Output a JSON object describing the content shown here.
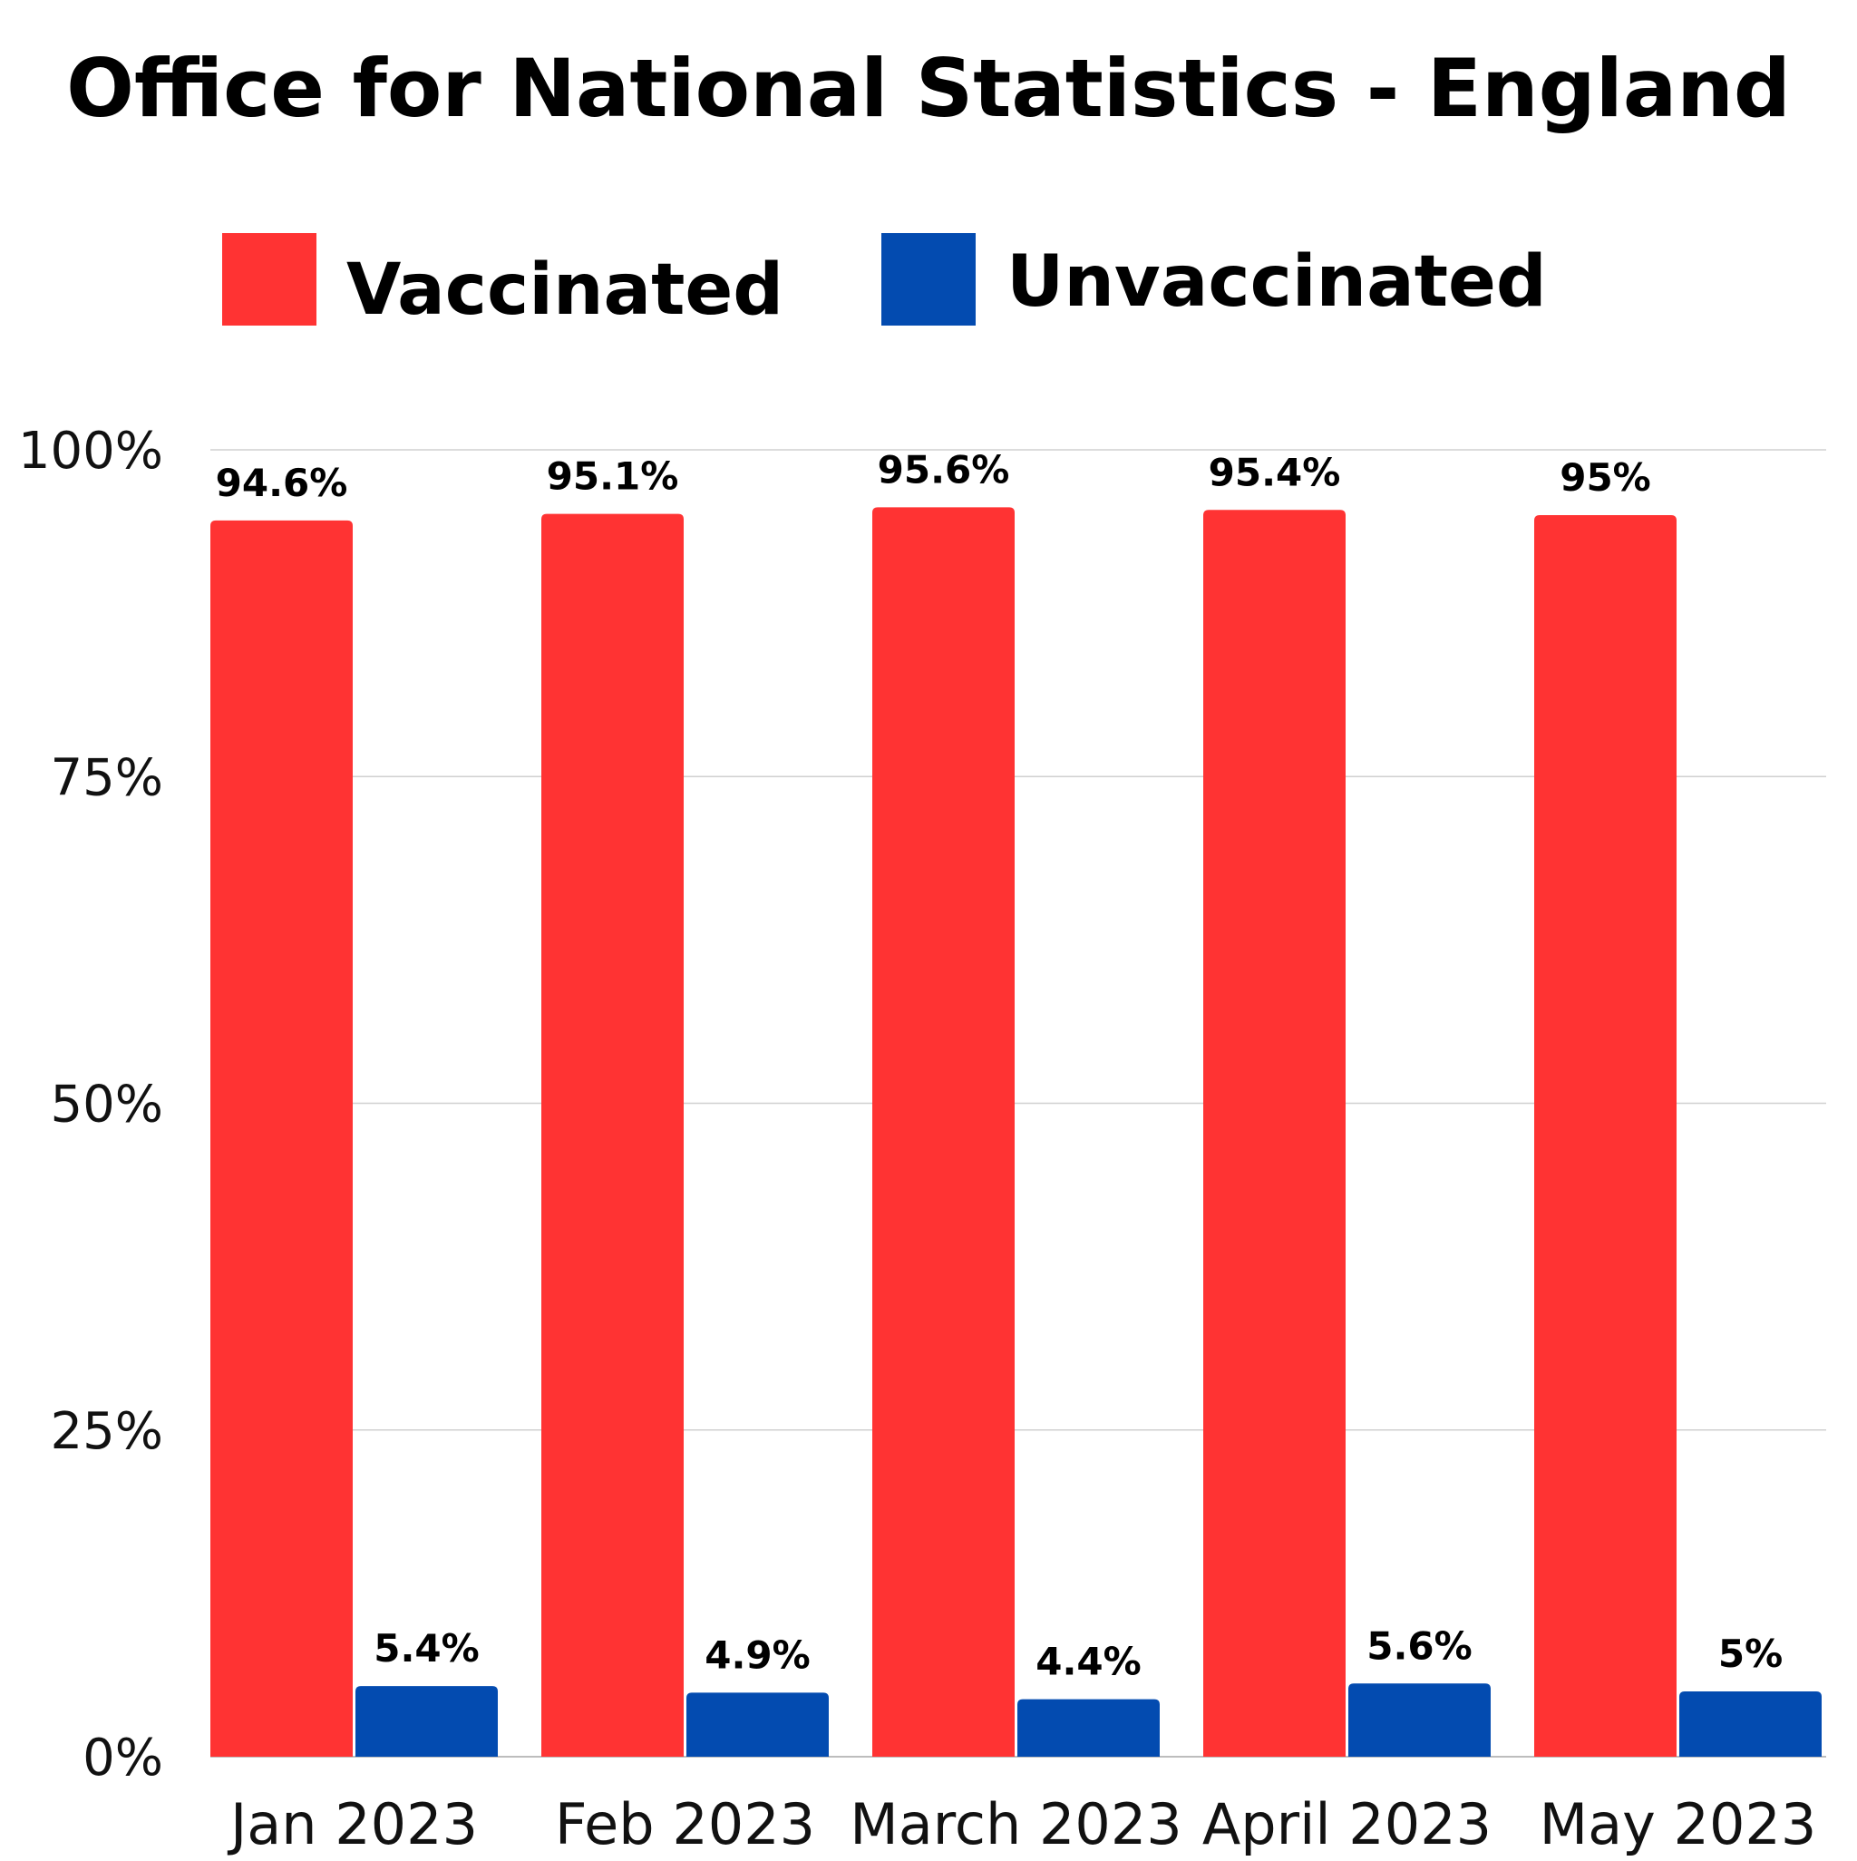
{
  "chart_data": {
    "type": "bar",
    "title": "Office for National Statistics - England",
    "xlabel": "",
    "ylabel": "",
    "categories": [
      "Jan 2023",
      "Feb 2023",
      "March 2023",
      "April 2023",
      "May 2023"
    ],
    "series": [
      {
        "name": "Vaccinated",
        "color": "#ff3333",
        "values": [
          94.6,
          95.1,
          95.6,
          95.4,
          95
        ],
        "labels": [
          "94.6%",
          "95.1%",
          "95.6%",
          "95.4%",
          "95%"
        ]
      },
      {
        "name": "Unvaccinated",
        "color": "#034bb0",
        "values": [
          5.4,
          4.9,
          4.4,
          5.6,
          5
        ],
        "labels": [
          "5.4%",
          "4.9%",
          "4.4%",
          "5.6%",
          "5%"
        ]
      }
    ],
    "ylim": [
      0,
      100
    ],
    "yticks": [
      0,
      25,
      50,
      75,
      100
    ],
    "ytick_labels": [
      "0%",
      "25%",
      "50%",
      "75%",
      "100%"
    ],
    "grid": true,
    "legend_position": "top"
  }
}
